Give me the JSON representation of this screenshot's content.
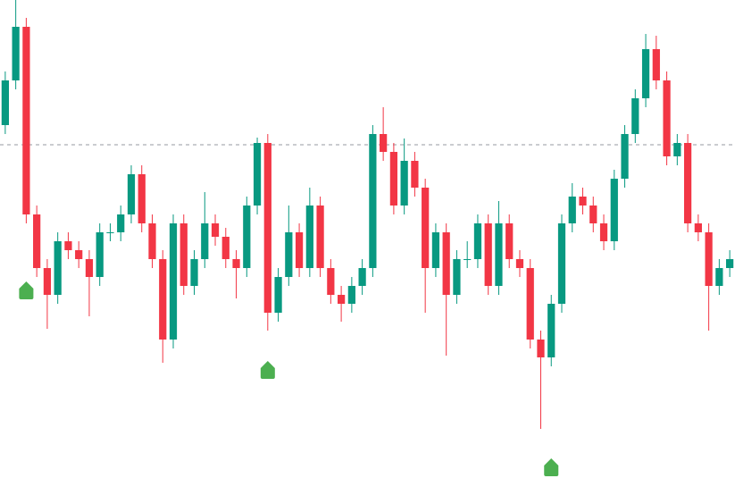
{
  "chart_data": {
    "type": "candlestick",
    "open": [
      414,
      464,
      524,
      314,
      254,
      224,
      284,
      274,
      264,
      244,
      294,
      294,
      314,
      359,
      304,
      264,
      174,
      304,
      234,
      264,
      304,
      289,
      264,
      254,
      324,
      394,
      204,
      244,
      294,
      254,
      324,
      254,
      224,
      214,
      234,
      254,
      404,
      384,
      324,
      374,
      344,
      254,
      294,
      224,
      264,
      264,
      304,
      234,
      304,
      264,
      254,
      174,
      154,
      214,
      304,
      334,
      324,
      304,
      284,
      354,
      404,
      444,
      499,
      464,
      379,
      394,
      304,
      294,
      234,
      254
    ],
    "high": [
      474,
      554,
      534,
      324,
      264,
      294,
      294,
      284,
      274,
      304,
      304,
      324,
      369,
      369,
      314,
      274,
      314,
      314,
      274,
      339,
      314,
      299,
      274,
      334,
      400,
      404,
      254,
      324,
      304,
      344,
      334,
      264,
      234,
      244,
      264,
      414,
      434,
      394,
      399,
      384,
      354,
      304,
      304,
      274,
      284,
      314,
      314,
      329,
      314,
      274,
      264,
      184,
      224,
      314,
      349,
      344,
      334,
      314,
      364,
      414,
      454,
      516,
      514,
      474,
      404,
      404,
      314,
      304,
      264,
      274
    ],
    "low": [
      404,
      454,
      304,
      244,
      186,
      214,
      264,
      254,
      200,
      234,
      284,
      284,
      304,
      294,
      254,
      148,
      164,
      224,
      224,
      254,
      279,
      254,
      220,
      244,
      314,
      184,
      194,
      234,
      244,
      244,
      244,
      214,
      194,
      204,
      224,
      244,
      374,
      314,
      314,
      334,
      204,
      244,
      156,
      214,
      254,
      254,
      224,
      224,
      254,
      244,
      164,
      74,
      144,
      204,
      294,
      314,
      294,
      274,
      274,
      344,
      394,
      434,
      454,
      369,
      369,
      294,
      284,
      184,
      224,
      244
    ],
    "close": [
      464,
      524,
      314,
      254,
      224,
      284,
      274,
      264,
      244,
      294,
      294,
      314,
      359,
      304,
      264,
      174,
      304,
      234,
      264,
      304,
      289,
      264,
      254,
      324,
      394,
      204,
      244,
      294,
      254,
      324,
      254,
      224,
      214,
      234,
      254,
      404,
      384,
      324,
      374,
      344,
      254,
      294,
      224,
      264,
      264,
      304,
      234,
      304,
      264,
      254,
      174,
      154,
      214,
      304,
      334,
      324,
      304,
      284,
      354,
      404,
      444,
      499,
      464,
      379,
      394,
      304,
      294,
      234,
      254,
      264
    ],
    "up_color": "#089981",
    "down_color": "#f23645",
    "ylim": [
      0,
      554
    ],
    "price_line": {
      "value": 392,
      "color": "#9598a1"
    },
    "signals": {
      "indices": [
        2,
        25,
        52
      ],
      "values": [
        229,
        140,
        31
      ],
      "color": "#4caf50"
    }
  }
}
